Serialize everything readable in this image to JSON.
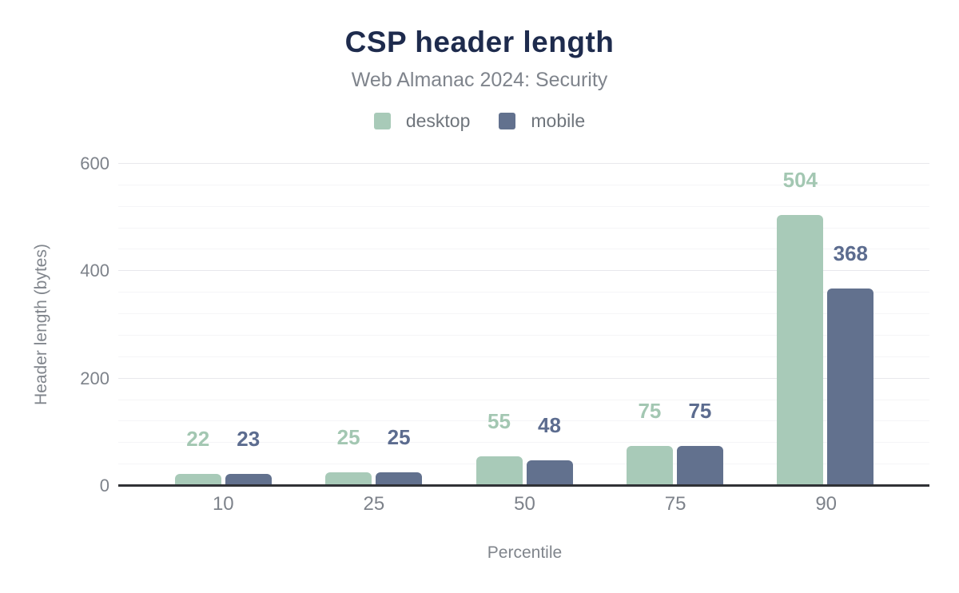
{
  "header": {
    "title": "CSP header length",
    "subtitle": "Web Almanac 2024: Security"
  },
  "chart_data": {
    "type": "bar",
    "title": "CSP header length",
    "subtitle": "Web Almanac 2024: Security",
    "categories": [
      "10",
      "25",
      "50",
      "75",
      "90"
    ],
    "series": [
      {
        "name": "desktop",
        "color": "#a8cab8",
        "label_color": "#a3c7b2",
        "values": [
          22,
          25,
          55,
          75,
          504
        ]
      },
      {
        "name": "mobile",
        "color": "#62718e",
        "label_color": "#5c6c8f",
        "values": [
          23,
          25,
          48,
          75,
          368
        ]
      }
    ],
    "xlabel": "Percentile",
    "ylabel": "Header length (bytes)",
    "ylim": [
      0,
      600
    ],
    "yticks": [
      0,
      200,
      400,
      600
    ],
    "minor_tick_step": 40,
    "grid": true,
    "legend_position": "top",
    "value_labels": true,
    "axis_line_color": "#303236"
  }
}
